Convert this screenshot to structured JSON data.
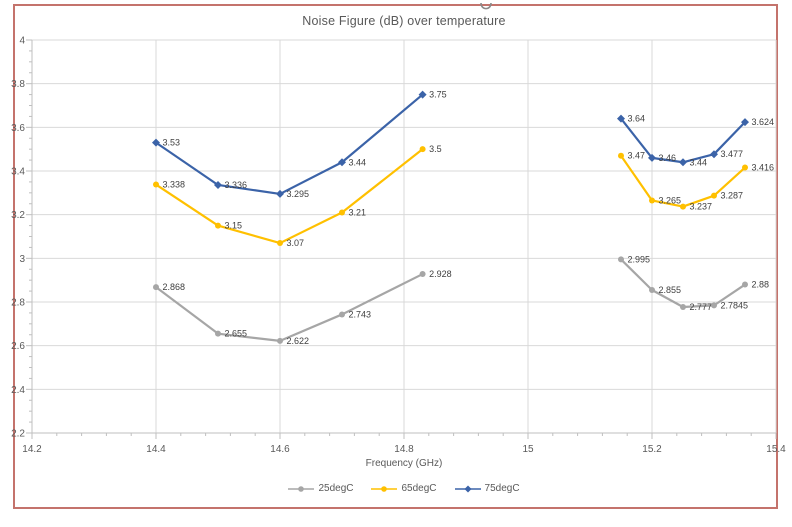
{
  "frame": {
    "border_color": "#C4736C"
  },
  "chart_data": {
    "type": "line",
    "title": "Noise Figure (dB) over temperature",
    "xlabel": "Frequency (GHz)",
    "ylabel": "",
    "xlim": [
      14.2,
      15.4
    ],
    "ylim": [
      2.2,
      4
    ],
    "grid": true,
    "legend_position": "bottom",
    "x_ticks": {
      "values": [
        14.2,
        14.4,
        14.6,
        14.8,
        15,
        15.2,
        15.4
      ],
      "labels": [
        "14.2",
        "14.4",
        "14.6",
        "14.8",
        "15",
        "15.2",
        "15.4"
      ]
    },
    "y_ticks": {
      "values": [
        4,
        3.8,
        3.6,
        3.4,
        3.2,
        3,
        2.8,
        2.6,
        2.4,
        2.2
      ],
      "labels": [
        "4",
        "3.8",
        "3.6",
        "3.4",
        "3.2",
        "3",
        "2.8",
        "2.6",
        "2.4",
        "2.2"
      ]
    },
    "minor_tick_step": {
      "x": 0.04,
      "y": 0.05
    },
    "colors": {
      "gridline": "#D9D9D9",
      "axis": "#BFBFBF",
      "tick_label": "#595959",
      "data_label": "#404040"
    },
    "series": [
      {
        "name": "25degC",
        "color": "#A6A6A6",
        "marker": "circle",
        "segments": [
          {
            "x": [
              14.4,
              14.5,
              14.6,
              14.7,
              14.83
            ],
            "y": [
              2.868,
              2.655,
              2.622,
              2.743,
              2.928
            ],
            "labels": [
              "2.868",
              "2.655",
              "2.622",
              "2.743",
              "2.928"
            ]
          },
          {
            "x": [
              15.15,
              15.2,
              15.25,
              15.3,
              15.35
            ],
            "y": [
              2.995,
              2.855,
              2.777,
              2.7845,
              2.88
            ],
            "labels": [
              "2.995",
              "2.855",
              "2.777",
              "2.7845",
              "2.88"
            ]
          }
        ]
      },
      {
        "name": "65degC",
        "color": "#FFC000",
        "marker": "circle",
        "segments": [
          {
            "x": [
              14.4,
              14.5,
              14.6,
              14.7,
              14.83
            ],
            "y": [
              3.338,
              3.15,
              3.07,
              3.21,
              3.5
            ],
            "labels": [
              "3.338",
              "3.15",
              "3.07",
              "3.21",
              "3.5"
            ]
          },
          {
            "x": [
              15.15,
              15.2,
              15.25,
              15.3,
              15.35
            ],
            "y": [
              3.47,
              3.265,
              3.237,
              3.287,
              3.416
            ],
            "labels": [
              "3.47",
              "3.265",
              "3.237",
              "3.287",
              "3.416"
            ]
          }
        ]
      },
      {
        "name": "75degC",
        "color": "#3B63A8",
        "marker": "diamond",
        "segments": [
          {
            "x": [
              14.4,
              14.5,
              14.6,
              14.7,
              14.83
            ],
            "y": [
              3.53,
              3.336,
              3.295,
              3.44,
              3.75
            ],
            "labels": [
              "3.53",
              "3.336",
              "3.295",
              "3.44",
              "3.75"
            ]
          },
          {
            "x": [
              15.15,
              15.2,
              15.25,
              15.3,
              15.35
            ],
            "y": [
              3.64,
              3.46,
              3.44,
              3.477,
              3.624
            ],
            "labels": [
              "3.64",
              "3.46",
              "3.44",
              "3.477",
              "3.624"
            ]
          }
        ]
      }
    ]
  }
}
